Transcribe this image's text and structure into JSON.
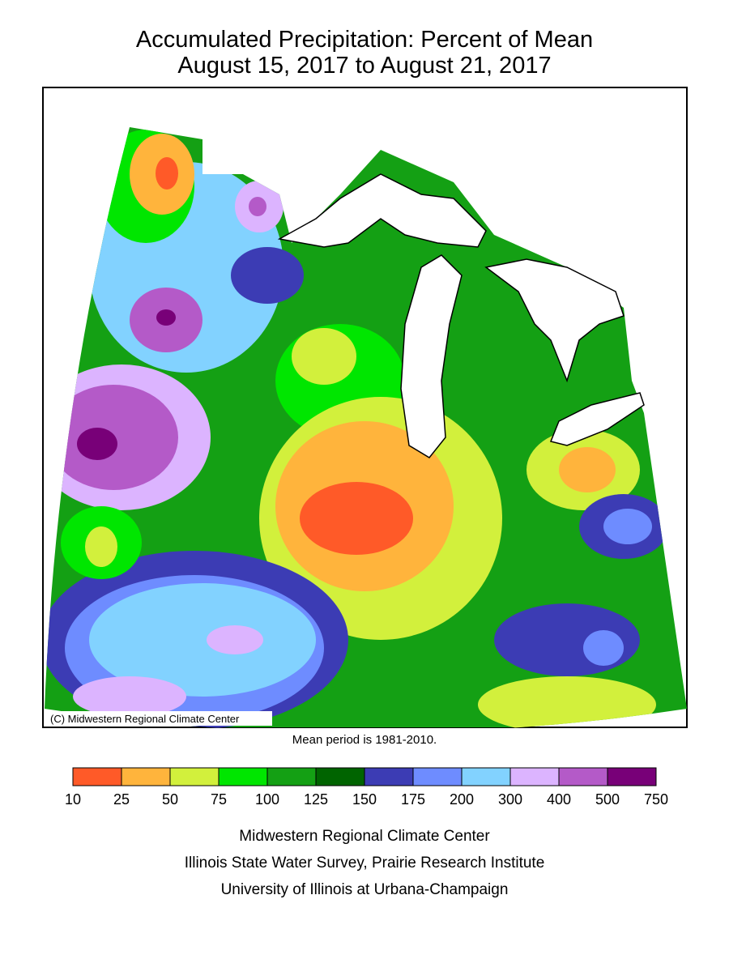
{
  "header": {
    "title": [
      "Accumulated Precipitation: Percent of Mean",
      "August 15, 2017 to August 21, 2017"
    ]
  },
  "map": {
    "credit": "(C) Midwestern Regional Climate Center",
    "note": "Mean period is 1981-2010."
  },
  "legend": {
    "ticks": [
      10,
      25,
      50,
      75,
      100,
      125,
      150,
      175,
      200,
      300,
      400,
      500,
      750
    ],
    "colors": [
      "#ff5a28",
      "#ffb43c",
      "#d2f03c",
      "#00e600",
      "#14a014",
      "#006400",
      "#3c3cb4",
      "#6e8cff",
      "#82d2ff",
      "#dcb4ff",
      "#b45ac8",
      "#780078"
    ]
  },
  "footer": [
    "Midwestern Regional Climate Center",
    "Illinois State Water Survey, Prairie Research Institute",
    "University of Illinois at Urbana-Champaign"
  ]
}
